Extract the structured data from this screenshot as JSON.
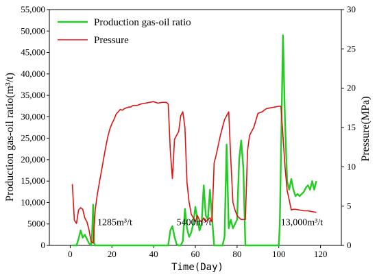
{
  "chart_data": {
    "type": "line",
    "xlabel": "Time(Day)",
    "ylabel_left": "Production gas-oil ratio(m³/t)",
    "ylabel_right": "Pressure(MPa)",
    "xlim": [
      -10,
      130
    ],
    "ylim_left": [
      0,
      55000
    ],
    "ylim_right": [
      0,
      30
    ],
    "x_ticks": [
      0,
      20,
      40,
      60,
      80,
      100,
      120
    ],
    "y_left_ticks": [
      0,
      5000,
      10000,
      15000,
      20000,
      25000,
      30000,
      35000,
      40000,
      45000,
      50000,
      55000
    ],
    "y_left_tick_labels": [
      "0",
      "5000",
      "10,000",
      "15,000",
      "20,000",
      "25,000",
      "30,000",
      "35,000",
      "40,000",
      "45,000",
      "50,000",
      "55,000"
    ],
    "y_right_ticks": [
      0,
      5,
      10,
      15,
      20,
      25,
      30
    ],
    "legend_position": "top-left",
    "series": [
      {
        "name": "Production gas-oil ratio",
        "axis": "left",
        "color": "#22cc22",
        "x": [
          1,
          3,
          4,
          5,
          6,
          7,
          8,
          9,
          10,
          10.5,
          11,
          11.5,
          12,
          13,
          20,
          30,
          40,
          46,
          47,
          48,
          49,
          50,
          51,
          52,
          53,
          54,
          55,
          56,
          57,
          58,
          59,
          60,
          61,
          62,
          63,
          64,
          65,
          66,
          67,
          68,
          69,
          70,
          71,
          72,
          73,
          74,
          75,
          76,
          77,
          78,
          79,
          80,
          81,
          82,
          83,
          84,
          86,
          90,
          95,
          100,
          100.5,
          101,
          102,
          103,
          104,
          105,
          106,
          107,
          108,
          109,
          110,
          111,
          112,
          113,
          114,
          115,
          116,
          117,
          118
        ],
        "values": [
          0,
          0,
          1500,
          3500,
          1800,
          2500,
          1500,
          500,
          0,
          3000,
          9500,
          500,
          0,
          0,
          0,
          0,
          0,
          0,
          0,
          3500,
          4500,
          2000,
          300,
          0,
          0,
          1000,
          8500,
          4000,
          2000,
          3000,
          5000,
          9000,
          6000,
          3500,
          5000,
          14000,
          7000,
          6000,
          13000,
          6500,
          0,
          0,
          0,
          0,
          0,
          2000,
          23500,
          4000,
          6000,
          4000,
          5000,
          6000,
          20000,
          24500,
          18000,
          0,
          0,
          0,
          0,
          0,
          5000,
          20000,
          49000,
          29000,
          15000,
          13000,
          15500,
          13000,
          11500,
          12000,
          11500,
          12000,
          12500,
          13500,
          14000,
          13000,
          15000,
          13000,
          15000
        ]
      },
      {
        "name": "Pressure",
        "axis": "right",
        "color": "#e01010",
        "x": [
          1,
          2,
          3,
          4,
          5,
          6,
          7,
          8,
          9,
          10,
          11,
          12,
          13,
          14,
          15,
          16,
          17,
          18,
          19,
          20,
          21,
          22,
          23,
          24,
          25,
          26,
          27,
          28,
          29,
          30,
          32,
          34,
          36,
          38,
          40,
          42,
          44,
          46,
          47,
          48,
          49,
          50,
          51,
          52,
          53,
          54,
          55,
          56,
          57,
          58,
          59,
          60,
          61,
          62,
          63,
          64,
          65,
          66,
          67,
          68,
          69,
          70,
          72,
          74,
          75,
          76,
          77,
          78,
          79,
          80,
          81,
          82,
          83,
          84,
          85,
          86,
          88,
          90,
          92,
          94,
          96,
          98,
          100,
          101,
          102,
          103,
          104,
          105,
          106,
          107,
          108,
          110,
          112,
          114,
          116,
          118
        ],
        "values": [
          7.8,
          3.2,
          2.8,
          4.5,
          4.8,
          4.6,
          3.5,
          3.0,
          2.0,
          0.5,
          0.3,
          4.5,
          6.5,
          8.0,
          9.5,
          11.0,
          12.5,
          13.8,
          14.8,
          15.5,
          16.0,
          16.7,
          17.0,
          17.3,
          17.2,
          17.4,
          17.5,
          17.6,
          17.6,
          17.8,
          17.8,
          18.0,
          18.1,
          18.2,
          18.3,
          18.1,
          18.2,
          18.2,
          18.0,
          12.0,
          8.5,
          13.5,
          14.0,
          14.5,
          16.5,
          17.0,
          15.0,
          8.0,
          5.5,
          4.0,
          3.5,
          3.0,
          3.8,
          3.2,
          3.0,
          3.5,
          3.0,
          3.3,
          3.5,
          3.0,
          10.5,
          11.5,
          14.0,
          16.0,
          16.5,
          17.0,
          11.0,
          5.5,
          4.5,
          3.8,
          3.5,
          3.3,
          3.3,
          3.3,
          12.0,
          14.0,
          15.0,
          16.8,
          17.0,
          17.4,
          17.5,
          17.6,
          17.7,
          17.7,
          14.0,
          10.0,
          7.0,
          5.8,
          4.5,
          4.6,
          4.6,
          4.5,
          4.4,
          4.4,
          4.3,
          4.2
        ]
      }
    ],
    "annotations": [
      {
        "text": "1285m³/t",
        "x": 13,
        "y": 5500
      },
      {
        "text": "5400m³/t",
        "x": 51,
        "y": 5500
      },
      {
        "text": "13,000m³/t",
        "x": 101,
        "y": 5500
      }
    ]
  }
}
